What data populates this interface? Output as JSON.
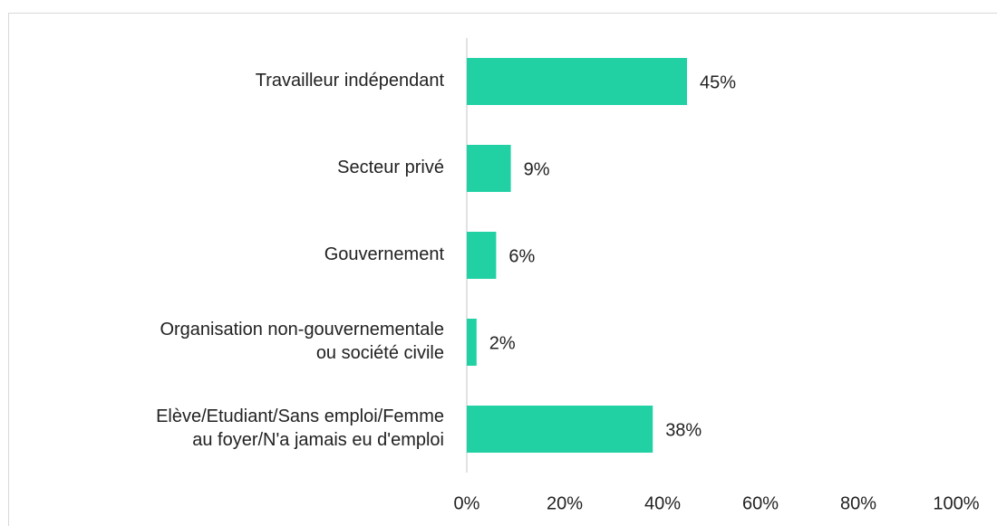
{
  "chart_data": {
    "type": "bar",
    "orientation": "horizontal",
    "categories": [
      [
        "Travailleur indépendant"
      ],
      [
        "Secteur privé"
      ],
      [
        "Gouvernement"
      ],
      [
        "Organisation non-gouvernementale",
        "ou société civile"
      ],
      [
        "Elève/Etudiant/Sans emploi/Femme",
        "au foyer/N'a jamais eu d'emploi"
      ]
    ],
    "values": [
      45,
      9,
      6,
      2,
      38
    ],
    "value_labels": [
      "45%",
      "9%",
      "6%",
      "2%",
      "38%"
    ],
    "color": "#21d1a4",
    "xlim": [
      0,
      100
    ],
    "xticks": [
      {
        "value": 0,
        "label": "0%"
      },
      {
        "value": 20,
        "label": "20%"
      },
      {
        "value": 40,
        "label": "40%"
      },
      {
        "value": 60,
        "label": "60%"
      },
      {
        "value": 80,
        "label": "80%"
      },
      {
        "value": 100,
        "label": "100%"
      }
    ],
    "grid": false
  }
}
